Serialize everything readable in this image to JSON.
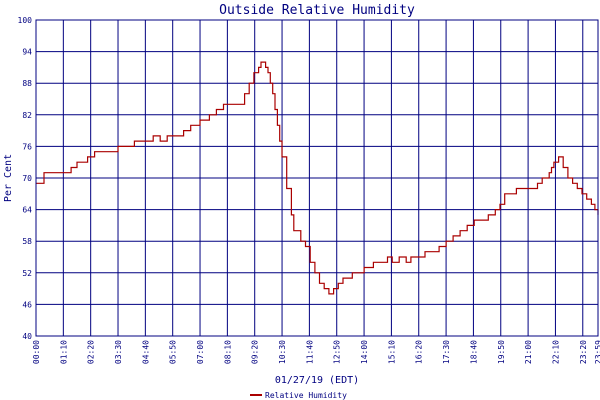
{
  "chart_data": {
    "type": "line",
    "title": "Outside Relative Humidity",
    "xlabel": "01/27/19 (EDT)",
    "ylabel": "Per Cent",
    "ylim": [
      40,
      100
    ],
    "yticks": [
      "100",
      "94",
      "88",
      "82",
      "76",
      "70",
      "64",
      "58",
      "52",
      "46",
      "40"
    ],
    "xticks": [
      "00:00",
      "01:10",
      "02:20",
      "03:30",
      "04:40",
      "05:50",
      "07:00",
      "08:10",
      "09:20",
      "10:30",
      "11:40",
      "12:50",
      "14:00",
      "15:10",
      "16:20",
      "17:30",
      "18:40",
      "19:50",
      "21:00",
      "22:10",
      "23:20",
      "23:59"
    ],
    "xlim_hours": [
      0,
      23.983
    ],
    "grid": true,
    "legend_position": "bottom-center",
    "series": [
      {
        "name": "Relative Humidity",
        "color": "#aa0000",
        "x_hours": [
          0.0,
          0.33,
          0.34,
          0.5,
          1.0,
          1.3,
          1.5,
          1.55,
          1.7,
          1.75,
          1.9,
          2.2,
          2.5,
          2.8,
          3.0,
          3.5,
          4.0,
          4.2,
          4.5,
          4.8,
          5.0,
          5.3,
          5.6,
          6.0,
          6.3,
          6.6,
          6.8,
          7.0,
          7.4,
          7.7,
          8.0,
          8.2,
          8.35,
          8.6,
          8.8,
          8.9,
          9.1,
          9.3,
          9.4,
          9.5,
          9.6,
          9.7,
          9.8,
          9.9,
          10.0,
          10.1,
          10.2,
          10.3,
          10.4,
          10.5,
          10.7,
          10.9,
          11.0,
          11.3,
          11.5,
          11.7,
          11.9,
          12.1,
          12.3,
          12.5,
          12.7,
          12.9,
          13.1,
          13.5,
          13.8,
          14.0,
          14.2,
          14.4,
          14.6,
          14.8,
          15.0,
          15.2,
          15.5,
          15.8,
          16.0,
          16.3,
          16.6,
          16.9,
          17.2,
          17.5,
          17.8,
          18.1,
          18.4,
          18.7,
          19.0,
          19.3,
          19.6,
          19.8,
          20.0,
          20.5,
          21.0,
          21.2,
          21.4,
          21.6,
          21.8,
          21.9,
          22.0,
          22.1,
          22.3,
          22.5,
          22.7,
          22.9,
          23.1,
          23.3,
          23.5,
          23.7,
          23.85,
          23.983
        ],
        "values": [
          69,
          69,
          71,
          71,
          71,
          71,
          72,
          72,
          72,
          73,
          73,
          74,
          75,
          75,
          75,
          76,
          76,
          77,
          77,
          77,
          78,
          77,
          78,
          78,
          79,
          80,
          80,
          81,
          82,
          83,
          84,
          84,
          84,
          84,
          84,
          86,
          88,
          90,
          90,
          91,
          92,
          92,
          91,
          90,
          88,
          86,
          83,
          80,
          77,
          74,
          68,
          63,
          60,
          58,
          57,
          54,
          52,
          50,
          49,
          48,
          49,
          50,
          51,
          52,
          52,
          53,
          53,
          54,
          54,
          54,
          55,
          54,
          55,
          54,
          55,
          55,
          56,
          56,
          57,
          58,
          59,
          60,
          61,
          62,
          62,
          63,
          64,
          65,
          67,
          68,
          68,
          68,
          69,
          70,
          70,
          71,
          72,
          73,
          74,
          72,
          70,
          69,
          68,
          67,
          66,
          65,
          64,
          63
        ]
      }
    ]
  }
}
